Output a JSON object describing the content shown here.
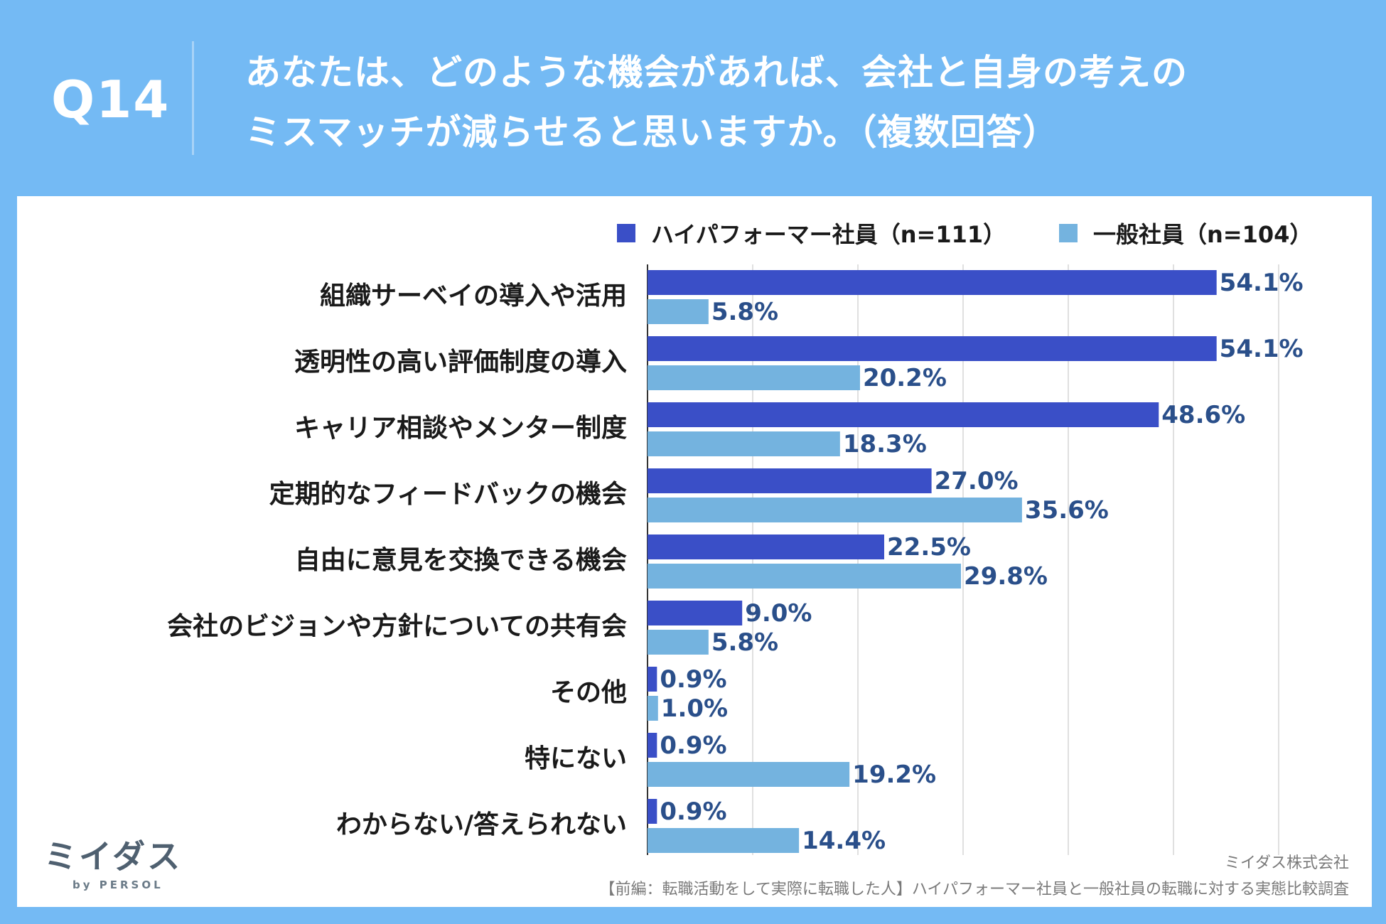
{
  "header": {
    "question_number": "Q14",
    "title_line1": "あなたは、どのような機会があれば、会社と自身の考えの",
    "title_line2": "ミスマッチが減らせると思いますか。（複数回答）"
  },
  "legend": [
    {
      "label": "ハイパフォーマー社員（n=111）",
      "color": "#3a4fc7"
    },
    {
      "label": "一般社員（n=104）",
      "color": "#74b3df"
    }
  ],
  "chart_data": {
    "type": "bar",
    "orientation": "horizontal",
    "title": "あなたは、どのような機会があれば、会社と自身の考えのミスマッチが減らせると思いますか。（複数回答）",
    "categories": [
      "組織サーベイの導入や活用",
      "透明性の高い評価制度の導入",
      "キャリア相談やメンター制度",
      "定期的なフィードバックの機会",
      "自由に意見を交換できる機会",
      "会社のビジョンや方針についての共有会",
      "その他",
      "特にない",
      "わからない/答えられない"
    ],
    "series": [
      {
        "name": "ハイパフォーマー社員（n=111）",
        "color": "#3a4fc7",
        "values": [
          54.1,
          54.1,
          48.6,
          27.0,
          22.5,
          9.0,
          0.9,
          0.9,
          0.9
        ]
      },
      {
        "name": "一般社員（n=104）",
        "color": "#74b3df",
        "values": [
          5.8,
          20.2,
          18.3,
          35.6,
          29.8,
          5.8,
          1.0,
          19.2,
          14.4
        ]
      }
    ],
    "value_suffix": "%",
    "xlim": [
      0,
      60
    ],
    "grid": true,
    "legend_position": "top-right",
    "label_color": "#2a4f8a"
  },
  "footer": {
    "logo_text": "ミイダス",
    "logo_sub": "by PERSOL",
    "company": "ミイダス株式会社",
    "survey": "【前編：転職活動をして実際に転職した人】ハイパフォーマー社員と一般社員の転職に対する実態比較調査"
  }
}
